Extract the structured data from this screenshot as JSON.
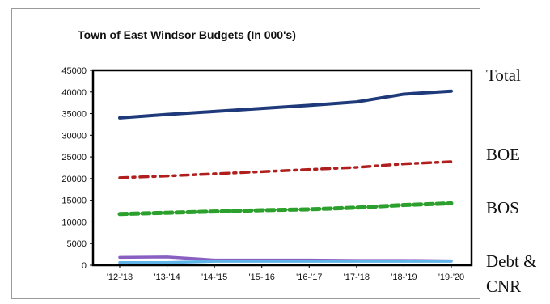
{
  "chart_data": {
    "type": "line",
    "title": "Town of East Windsor Budgets (In 000's)",
    "categories": [
      "'12-'13",
      "'13-'14",
      "'14-'15",
      "'15-'16",
      "'16-'17",
      "'17-'18",
      "'18-'19",
      "'19-'20"
    ],
    "ylim": [
      0,
      45000
    ],
    "yticks": [
      0,
      5000,
      10000,
      15000,
      20000,
      25000,
      30000,
      35000,
      40000,
      45000
    ],
    "grid": false,
    "series": [
      {
        "name": "Total",
        "values": [
          34000,
          34800,
          35500,
          36200,
          36900,
          37700,
          39500,
          40200
        ],
        "color": "#1f3a7a",
        "dash": "solid"
      },
      {
        "name": "BOE",
        "values": [
          20200,
          20600,
          21100,
          21600,
          22100,
          22600,
          23400,
          23900
        ],
        "color": "#b01e1e",
        "dash": "dashdot"
      },
      {
        "name": "BOS",
        "values": [
          11800,
          12100,
          12400,
          12700,
          12900,
          13300,
          13900,
          14300
        ],
        "color": "#2ca02c",
        "dash": "dash"
      },
      {
        "name": "Debt & CNR",
        "values": [
          1800,
          1900,
          1200,
          1200,
          1200,
          1100,
          1100,
          1000
        ],
        "color": "#8a5fc2",
        "dash": "solid"
      },
      {
        "name": "",
        "values": [
          600,
          600,
          900,
          900,
          900,
          900,
          900,
          900
        ],
        "color": "#5fb4e8",
        "dash": "solid"
      }
    ]
  },
  "labels": {
    "total": "Total",
    "boe": "BOE",
    "bos": "BOS",
    "debt_line1": "Debt &",
    "debt_line2": "CNR"
  }
}
